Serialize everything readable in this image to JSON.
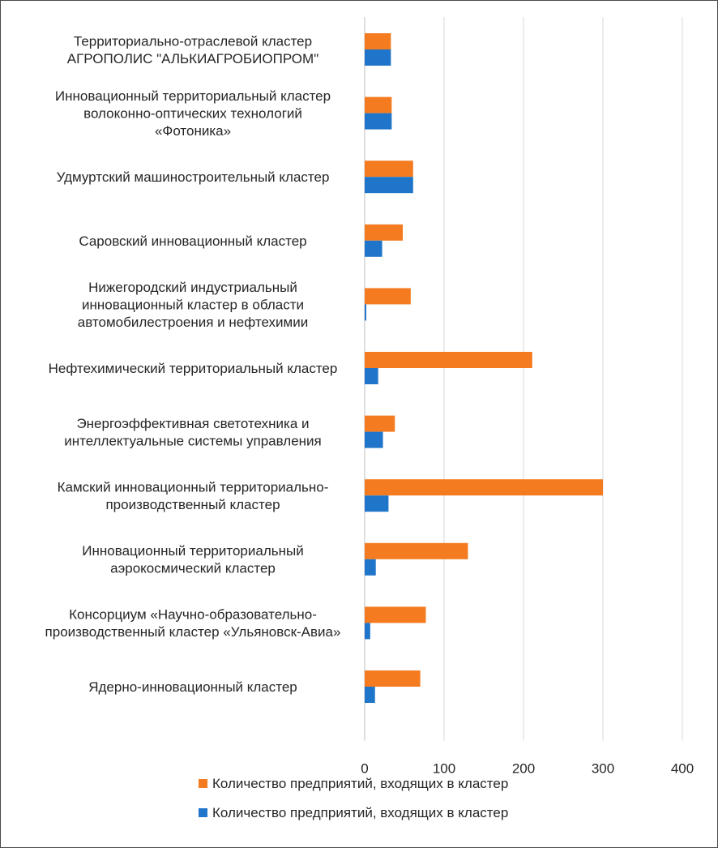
{
  "chart_data": {
    "type": "bar",
    "orientation": "horizontal",
    "title": "",
    "xlabel": "",
    "ylabel": "",
    "xlim": [
      0,
      400
    ],
    "x_ticks": [
      "0",
      "100",
      "200",
      "300",
      "400"
    ],
    "grid": true,
    "legend_position": "bottom",
    "categories": [
      [
        "Территориально-отраслевой кластер",
        "АГРОПОЛИС \"АЛЬКИАГРОБИОПРОМ\""
      ],
      [
        "Инновационный территориальный кластер",
        "волоконно-оптических технологий",
        "«Фотоника»"
      ],
      [
        "Удмуртский машиностроительный кластер"
      ],
      [
        "Саровский инновационный кластер"
      ],
      [
        "Нижегородский индустриальный",
        "инновационный кластер в области",
        "автомобилестроения и нефтехимии"
      ],
      [
        "Нефтехимический территориальный кластер"
      ],
      [
        "Энергоэффективная светотехника и",
        "интеллектуальные системы управления"
      ],
      [
        "Камский инновационный территориально-",
        "производственный кластер"
      ],
      [
        "Инновационный территориальный",
        "аэрокосмический кластер"
      ],
      [
        "Консорциум «Научно-образовательно-",
        "производственный кластер «Ульяновск-Авиа»"
      ],
      [
        "Ядерно-инновационный кластер"
      ]
    ],
    "series": [
      {
        "name": "Количество предприятий, входящих в кластер",
        "color": "#f47b20",
        "values": [
          33,
          34,
          61,
          48,
          58,
          211,
          38,
          300,
          130,
          77,
          70
        ]
      },
      {
        "name": "Количество предприятий, входящих в кластер",
        "color": "#1f75c9",
        "values": [
          33,
          34,
          61,
          22,
          2,
          17,
          23,
          30,
          14,
          7,
          13
        ]
      }
    ]
  }
}
